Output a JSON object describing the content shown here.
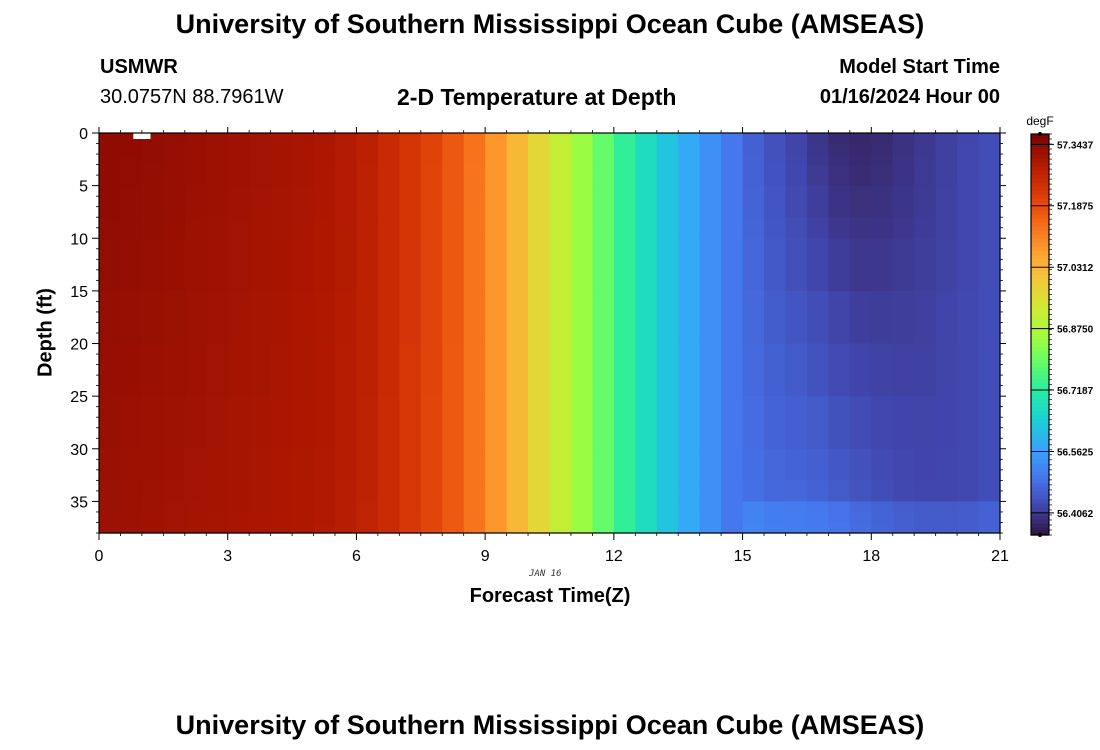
{
  "page": {
    "title": "University of Southern Mississippi Ocean Cube (AMSEAS)",
    "station": "USMWR",
    "coords": "30.0757N  88.7961W",
    "subtitle": "2-D Temperature at Depth",
    "model_start_label": "Model Start Time",
    "model_start_value": "01/16/2024 Hour 00",
    "date_label": "JAN 16",
    "footer_title": "University of Southern Mississippi Ocean Cube (AMSEAS)"
  },
  "chart_data": {
    "type": "heatmap",
    "xlabel": "Forecast Time(Z)",
    "ylabel": "Depth (ft)",
    "xlim": [
      0,
      21
    ],
    "ylim": [
      38,
      0
    ],
    "x_ticks": [
      "0",
      "3",
      "6",
      "9",
      "12",
      "15",
      "18",
      "21"
    ],
    "y_ticks": [
      "0",
      "5",
      "10",
      "15",
      "20",
      "25",
      "30",
      "35"
    ],
    "colorbar": {
      "units": "degF",
      "range": [
        56.35,
        57.37
      ],
      "tick_labels": [
        "57.3437",
        "57.1875",
        "57.0312",
        "56.8750",
        "56.7187",
        "56.5625",
        "56.4062"
      ],
      "tick_values": [
        57.3437,
        57.1875,
        57.0312,
        56.875,
        56.7187,
        56.5625,
        56.4062
      ],
      "colors": [
        "#30123b",
        "#4145ab",
        "#4675ed",
        "#39a2fc",
        "#1bcfd4",
        "#24eca6",
        "#61fc6c",
        "#a4fc3b",
        "#d1e834",
        "#f3c63a",
        "#fe9b2d",
        "#f36315",
        "#d93806",
        "#b11901",
        "#7a0403"
      ]
    },
    "time_hours": [
      0,
      0.5,
      1,
      1.5,
      2,
      2.5,
      3,
      3.5,
      4,
      4.5,
      5,
      5.5,
      6,
      6.5,
      7,
      7.5,
      8,
      8.5,
      9,
      9.5,
      10,
      10.5,
      11,
      11.5,
      12,
      12.5,
      13,
      13.5,
      14,
      14.5,
      15,
      15.5,
      16,
      16.5,
      17,
      17.5,
      18,
      18.5,
      19,
      19.5,
      20,
      20.5,
      21
    ],
    "surface_temperature_degF": [
      57.345,
      57.343,
      57.34,
      57.336,
      57.332,
      57.328,
      57.324,
      57.32,
      57.316,
      57.312,
      57.308,
      57.3,
      57.29,
      57.27,
      57.245,
      57.22,
      57.19,
      57.15,
      57.11,
      57.06,
      57.0,
      56.94,
      56.88,
      56.82,
      56.76,
      56.7,
      56.65,
      56.6,
      56.56,
      56.52,
      56.48,
      56.45,
      56.43,
      56.41,
      56.39,
      56.38,
      56.38,
      56.39,
      56.4,
      56.41,
      56.42,
      56.43,
      56.44
    ],
    "depth_ft": [
      0,
      1,
      2,
      3,
      5,
      8,
      10,
      15,
      20,
      25,
      30,
      33,
      35,
      36,
      37,
      38
    ],
    "note_missing_cell": [
      0.8,
      1.2
    ]
  }
}
